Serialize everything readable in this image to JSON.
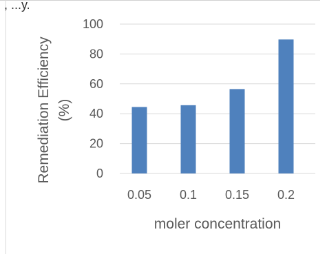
{
  "header": {
    "text": ", ...y."
  },
  "chart_data": {
    "type": "bar",
    "categories": [
      "0.05",
      "0.1",
      "0.15",
      "0.2"
    ],
    "values": [
      44.5,
      45.7,
      56.5,
      89.7
    ],
    "title": "",
    "xlabel": "moler concentration",
    "ylabel_lines": [
      "Remediation Efficiency",
      "(%)"
    ],
    "ylim": [
      0,
      100
    ],
    "yticks": [
      "0",
      "20",
      "40",
      "60",
      "80",
      "100"
    ],
    "grid": true,
    "legend": "none",
    "bar_color": "#4f81bd",
    "grid_color": "#d9d9d9"
  }
}
